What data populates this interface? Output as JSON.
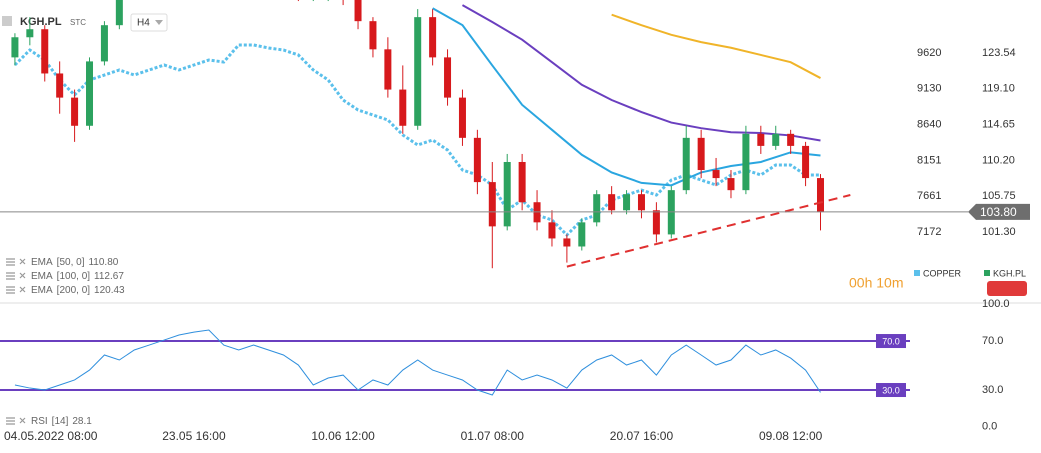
{
  "chart_data": [
    {
      "type": "candlestick",
      "title": "KGH.PL",
      "subtitle": "STC",
      "interval": "H4",
      "countdown": "00h 10m",
      "name": "KGH.PL",
      "up_color": "#2ca25f",
      "down_color": "#d7191c",
      "legend_color": "#2ca25f",
      "x": [
        -2,
        -1,
        0,
        1,
        2,
        3,
        4,
        5,
        6,
        7,
        8,
        9,
        10,
        11,
        12,
        13,
        14,
        15,
        16,
        17,
        18,
        19,
        20,
        21,
        22,
        23,
        24,
        25,
        26,
        27,
        28,
        29,
        30,
        31,
        32,
        33,
        34,
        35,
        36,
        37,
        38,
        39,
        40,
        41,
        42,
        43,
        44,
        45,
        46,
        47,
        48,
        49,
        50,
        51,
        52
      ],
      "open": [
        123,
        125.5,
        126.5,
        121,
        118,
        114.5,
        122.5,
        127,
        131.5,
        133,
        134,
        133.5,
        132.5,
        133.5,
        135,
        134.5,
        133,
        132,
        131.5,
        131,
        130.5,
        131,
        131.5,
        130.5,
        127.5,
        124,
        119,
        114.5,
        128,
        123,
        118,
        113,
        107.5,
        102,
        110,
        105,
        102.5,
        100.5,
        99.5,
        102.5,
        106,
        104,
        106,
        104,
        101,
        106.5,
        113,
        109,
        108,
        106.5,
        113.5,
        112,
        113.5,
        112,
        108
      ],
      "high": [
        126,
        128,
        127,
        122.5,
        119,
        123,
        127.5,
        132,
        134,
        135,
        135.5,
        134.5,
        134,
        136,
        136.5,
        135,
        134,
        133,
        132,
        132,
        131.5,
        132,
        132,
        131,
        128,
        125.5,
        122,
        129,
        129,
        124,
        119,
        114,
        110,
        111,
        111,
        106.5,
        104,
        101,
        103,
        106.5,
        107,
        106.5,
        106.5,
        105,
        107,
        114.5,
        114,
        110.5,
        109,
        114.5,
        114.5,
        114.5,
        114,
        112.5,
        108.5
      ],
      "low": [
        122,
        124.5,
        120,
        116,
        112.5,
        114,
        122,
        126.5,
        131,
        132,
        133,
        132,
        131.5,
        133,
        134,
        132.5,
        131.5,
        130.5,
        130.5,
        130,
        130,
        130,
        129.5,
        126.5,
        123,
        118,
        113.5,
        114,
        122,
        117,
        112,
        106,
        96.8,
        101.5,
        104,
        101.5,
        99.5,
        97.5,
        99,
        102,
        103.5,
        103.5,
        103,
        100,
        100.5,
        106,
        108,
        107,
        105.5,
        106,
        111,
        111.5,
        111,
        107,
        101.5
      ],
      "close": [
        125.5,
        126.5,
        121,
        118,
        114.5,
        122.5,
        127,
        131.5,
        133,
        134,
        133.5,
        132.5,
        133.5,
        135,
        134.5,
        133,
        132,
        131.5,
        131,
        130.5,
        131,
        131.5,
        130.5,
        127.5,
        124,
        119,
        114.5,
        128,
        123,
        118,
        113,
        107.5,
        102,
        110,
        105,
        102.5,
        100.5,
        99.5,
        102.5,
        106,
        104,
        106,
        104,
        101,
        106.5,
        113,
        109,
        108,
        106.5,
        113.5,
        112,
        113.5,
        112,
        108,
        103.8
      ],
      "series": [
        {
          "name": "COPPER",
          "color": "#5bc0eb",
          "axis": "y2",
          "values": [
            9456,
            9661,
            9524,
            9251,
            9046,
            9251,
            9319,
            9388,
            9319,
            9388,
            9456,
            9388,
            9456,
            9524,
            9497,
            9730,
            9730,
            9689,
            9661,
            9593,
            9388,
            9251,
            8977,
            8841,
            8772,
            8704,
            8499,
            8362,
            8430,
            8293,
            8020,
            7952,
            7815,
            7473,
            7610,
            7404,
            7336,
            7131,
            7336,
            7404,
            7610,
            7678,
            7746,
            7678,
            7883,
            7952,
            7883,
            7815,
            7952,
            8020,
            7952,
            8088,
            8088,
            7952,
            7952
          ]
        }
      ],
      "indicators": [
        {
          "name": "EMA",
          "params": "[50, 0]",
          "value": 110.8,
          "value_label": "110.80",
          "color": "#2aa6e0",
          "x": [
            26,
            28,
            30,
            32,
            34,
            36,
            38,
            40,
            42,
            44,
            46,
            48,
            50,
            52
          ],
          "values": [
            129.1,
            127.0,
            122.0,
            117.1,
            114.0,
            110.9,
            108.7,
            107.4,
            107.1,
            108.7,
            109.5,
            110.0,
            111.2,
            110.8
          ]
        },
        {
          "name": "EMA",
          "params": "[100, 0]",
          "value": 112.67,
          "color": "#6a3fbf",
          "x": [
            28,
            30,
            32,
            34,
            36,
            38,
            40,
            42,
            44,
            46,
            48,
            50,
            52
          ],
          "values": [
            129.5,
            127.4,
            125.2,
            122.4,
            119.6,
            117.7,
            116.2,
            114.9,
            114.2,
            113.7,
            113.6,
            113.3,
            112.67
          ]
        },
        {
          "name": "EMA",
          "params": "[200, 0]",
          "value": 120.43,
          "color": "#f0b429",
          "x": [
            38,
            40,
            42,
            44,
            46,
            48,
            50,
            52
          ],
          "values": [
            128.3,
            127.0,
            125.8,
            124.9,
            124.2,
            123.3,
            122.4,
            120.43
          ]
        }
      ],
      "trendline": {
        "x": [
          35,
          54
        ],
        "values": [
          97.0,
          105.9
        ],
        "color": "#e03030"
      },
      "current": {
        "value": 103.8,
        "label": "103.80"
      },
      "xlim": [
        -3,
        58
      ],
      "xticks": [
        {
          "value": 0,
          "label": "04.05.2022 08:00"
        },
        {
          "value": 10,
          "label": "23.05 16:00"
        },
        {
          "value": 20,
          "label": "10.06 12:00"
        },
        {
          "value": 30,
          "label": "01.07 08:00"
        },
        {
          "value": 40,
          "label": "20.07 16:00"
        },
        {
          "value": 50,
          "label": "09.08 12:00"
        }
      ],
      "ylim": [
        92.85,
        130.13
      ],
      "yticks": [
        123.54,
        {
          "value": 119.1,
          "label": "119.10"
        },
        114.65,
        {
          "value": 110.2,
          "label": "110.20"
        },
        105.75,
        {
          "value": 101.3,
          "label": "101.30"
        }
      ],
      "y2lim": [
        6242,
        10345
      ],
      "y2ticks": [
        9620,
        9130,
        8640,
        8151,
        7661,
        7172
      ],
      "grid": false
    },
    {
      "type": "line",
      "name": "RSI",
      "params": "[14]",
      "value": 28.1,
      "color": "#2f8fdd",
      "x": [
        -2,
        -1,
        0,
        1,
        2,
        3,
        4,
        5,
        6,
        7,
        8,
        9,
        10,
        11,
        12,
        13,
        14,
        15,
        16,
        17,
        18,
        19,
        20,
        21,
        22,
        23,
        24,
        25,
        26,
        27,
        28,
        29,
        30,
        31,
        32,
        33,
        34,
        35,
        36,
        37,
        38,
        39,
        40,
        41,
        42,
        43,
        44,
        45,
        46,
        47,
        48,
        49,
        50,
        51,
        52
      ],
      "values": [
        34.1,
        31.6,
        30,
        34.1,
        38.2,
        46.3,
        58.6,
        54.5,
        62.7,
        66.7,
        70.8,
        74.9,
        77.3,
        79,
        66.7,
        62.7,
        66.7,
        62.7,
        58.6,
        50.4,
        34.1,
        39.8,
        42.2,
        30,
        38.2,
        34.1,
        46.3,
        54.5,
        46.3,
        42.2,
        38.2,
        30,
        25.9,
        46.3,
        38.2,
        42.2,
        38.2,
        31.6,
        46.3,
        54.5,
        58.6,
        50.4,
        54.5,
        42.2,
        58.6,
        66.7,
        58.6,
        50.4,
        54.5,
        66.7,
        58.6,
        62.7,
        56.1,
        46.3,
        28.1
      ],
      "xlim": [
        -3,
        58
      ],
      "ylim": [
        -2.65,
        103.5
      ],
      "yticks": [
        {
          "value": 100,
          "label": "100.0"
        },
        {
          "value": 70,
          "label": "70.0"
        },
        {
          "value": 30,
          "label": "30.0"
        },
        {
          "value": 0,
          "label": "0.0"
        }
      ],
      "levels": [
        {
          "value": 70,
          "label": "70.0"
        },
        {
          "value": 30,
          "label": "30.0"
        }
      ],
      "level_color": "#6a3fbf"
    }
  ]
}
